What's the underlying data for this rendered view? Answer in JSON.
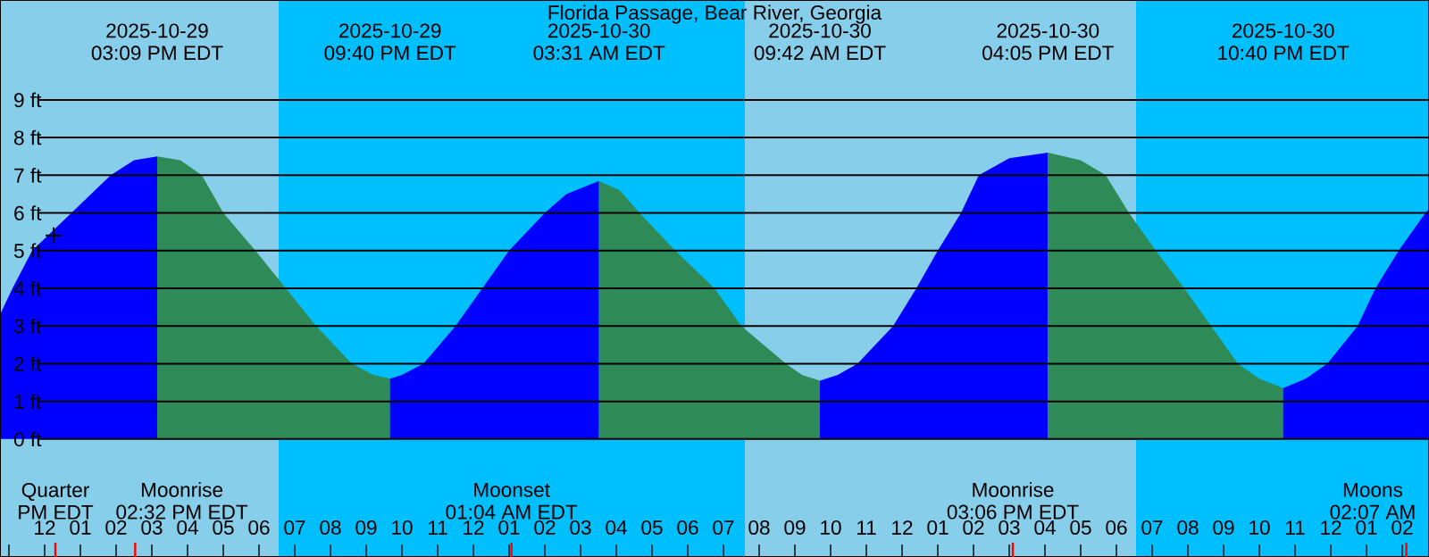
{
  "chart_data": {
    "type": "area",
    "title": "Florida Passage, Bear River, Georgia",
    "xlim": [
      "2025-10-29T10:45",
      "2025-10-31T02:45"
    ],
    "ylim": [
      -3.13,
      11.65
    ],
    "xticks": [
      {
        "value": "2025-10-29T11:00",
        "label": null
      },
      {
        "value": "2025-10-29T12:00",
        "label": "12"
      },
      {
        "value": "2025-10-29T13:00",
        "label": "01"
      },
      {
        "value": "2025-10-29T14:00",
        "label": "02"
      },
      {
        "value": "2025-10-29T15:00",
        "label": "03"
      },
      {
        "value": "2025-10-29T16:00",
        "label": "04"
      },
      {
        "value": "2025-10-29T17:00",
        "label": "05"
      },
      {
        "value": "2025-10-29T18:00",
        "label": "06"
      },
      {
        "value": "2025-10-29T19:00",
        "label": "07"
      },
      {
        "value": "2025-10-29T20:00",
        "label": "08"
      },
      {
        "value": "2025-10-29T21:00",
        "label": "09"
      },
      {
        "value": "2025-10-29T22:00",
        "label": "10"
      },
      {
        "value": "2025-10-29T23:00",
        "label": "11"
      },
      {
        "value": "2025-10-30T00:00",
        "label": "12"
      },
      {
        "value": "2025-10-30T01:00",
        "label": "01"
      },
      {
        "value": "2025-10-30T02:00",
        "label": "02"
      },
      {
        "value": "2025-10-30T03:00",
        "label": "03"
      },
      {
        "value": "2025-10-30T04:00",
        "label": "04"
      },
      {
        "value": "2025-10-30T05:00",
        "label": "05"
      },
      {
        "value": "2025-10-30T06:00",
        "label": "06"
      },
      {
        "value": "2025-10-30T07:00",
        "label": "07"
      },
      {
        "value": "2025-10-30T08:00",
        "label": "08"
      },
      {
        "value": "2025-10-30T09:00",
        "label": "09"
      },
      {
        "value": "2025-10-30T10:00",
        "label": "10"
      },
      {
        "value": "2025-10-30T11:00",
        "label": "11"
      },
      {
        "value": "2025-10-30T12:00",
        "label": "12"
      },
      {
        "value": "2025-10-30T13:00",
        "label": "01"
      },
      {
        "value": "2025-10-30T14:00",
        "label": "02"
      },
      {
        "value": "2025-10-30T15:00",
        "label": "03"
      },
      {
        "value": "2025-10-30T16:00",
        "label": "04"
      },
      {
        "value": "2025-10-30T17:00",
        "label": "05"
      },
      {
        "value": "2025-10-30T18:00",
        "label": "06"
      },
      {
        "value": "2025-10-30T19:00",
        "label": "07"
      },
      {
        "value": "2025-10-30T20:00",
        "label": "08"
      },
      {
        "value": "2025-10-30T21:00",
        "label": "09"
      },
      {
        "value": "2025-10-30T22:00",
        "label": "10"
      },
      {
        "value": "2025-10-30T23:00",
        "label": "11"
      },
      {
        "value": "2025-10-31T00:00",
        "label": "12"
      },
      {
        "value": "2025-10-31T01:00",
        "label": "01"
      },
      {
        "value": "2025-10-31T02:00",
        "label": "02"
      }
    ],
    "yticks": [
      {
        "value": 0,
        "label": "0 ft"
      },
      {
        "value": 1,
        "label": "1 ft"
      },
      {
        "value": 2,
        "label": "2 ft"
      },
      {
        "value": 3,
        "label": "3 ft"
      },
      {
        "value": 4,
        "label": "4 ft"
      },
      {
        "value": 5,
        "label": "5 ft"
      },
      {
        "value": 6,
        "label": "6 ft"
      },
      {
        "value": 7,
        "label": "7 ft"
      },
      {
        "value": 8,
        "label": "8 ft"
      },
      {
        "value": 9,
        "label": "9 ft"
      }
    ],
    "grid": "y",
    "bands": [
      {
        "axis": "x",
        "from": "2025-10-29T10:45",
        "to": "2025-10-29T18:33",
        "color": "#87ceeb"
      },
      {
        "axis": "x",
        "from": "2025-10-29T18:33",
        "to": "2025-10-30T07:36",
        "color": "#00bfff"
      },
      {
        "axis": "x",
        "from": "2025-10-30T07:36",
        "to": "2025-10-30T18:33",
        "color": "#87ceeb"
      },
      {
        "axis": "x",
        "from": "2025-10-30T18:33",
        "to": "2025-10-31T02:45",
        "color": "#00bfff"
      }
    ],
    "ref_lines": [
      {
        "axis": "x",
        "value": "2025-10-29T12:18",
        "label": "Quarter PM EDT",
        "color": "#ff0000"
      },
      {
        "axis": "x",
        "value": "2025-10-29T14:32",
        "label": "Moonrise 02:32 PM EDT",
        "color": "#ff0000"
      },
      {
        "axis": "x",
        "value": "2025-10-30T01:04",
        "label": "Moonset 01:04 AM EDT",
        "color": "#ff0000"
      },
      {
        "axis": "x",
        "value": "2025-10-30T15:06",
        "label": "Moonrise 03:06 PM EDT",
        "color": "#ff0000"
      },
      {
        "axis": "x",
        "value": "2025-10-31T02:07",
        "label": "Moons 02:07 AM",
        "color": "#ff0000"
      }
    ],
    "series": [
      {
        "color": "#0000ff",
        "x": [
          "2025-10-29T10:45",
          "2025-10-29T11:06",
          "2025-10-29T11:39",
          "2025-10-29T12:45",
          "2025-10-29T13:51",
          "2025-10-29T14:30",
          "2025-10-29T15:09"
        ],
        "values": [
          3.3,
          4,
          5,
          6,
          7,
          7.4,
          7.5
        ]
      },
      {
        "color": "#2e8b57",
        "x": [
          "2025-10-29T15:09",
          "2025-10-29T15:48",
          "2025-10-29T16:24",
          "2025-10-29T17:00",
          "2025-10-29T17:54",
          "2025-10-29T18:45",
          "2025-10-29T19:36",
          "2025-10-29T20:36",
          "2025-10-29T21:12",
          "2025-10-29T21:40"
        ],
        "values": [
          7.5,
          7.4,
          7,
          6,
          5,
          4,
          3,
          2,
          1.7,
          1.6
        ]
      },
      {
        "color": "#0000ff",
        "x": [
          "2025-10-29T21:40",
          "2025-10-29T22:00",
          "2025-10-29T22:36",
          "2025-10-29T23:30",
          "2025-10-30T00:15",
          "2025-10-30T01:00",
          "2025-10-30T02:00",
          "2025-10-30T02:36",
          "2025-10-30T03:31"
        ],
        "values": [
          1.6,
          1.7,
          2,
          3,
          4,
          5,
          6,
          6.5,
          6.85
        ]
      },
      {
        "color": "#2e8b57",
        "x": [
          "2025-10-30T03:31",
          "2025-10-30T04:06",
          "2025-10-30T04:39",
          "2025-10-30T05:39",
          "2025-10-30T06:45",
          "2025-10-30T07:30",
          "2025-10-30T08:45",
          "2025-10-30T09:12",
          "2025-10-30T09:42"
        ],
        "values": [
          6.85,
          6.6,
          6,
          5,
          4,
          3,
          2,
          1.7,
          1.55
        ]
      },
      {
        "color": "#0000ff",
        "x": [
          "2025-10-30T09:42",
          "2025-10-30T10:12",
          "2025-10-30T10:45",
          "2025-10-30T11:45",
          "2025-10-30T12:24",
          "2025-10-30T13:00",
          "2025-10-30T13:39",
          "2025-10-30T14:09",
          "2025-10-30T15:00",
          "2025-10-30T16:05"
        ],
        "values": [
          1.55,
          1.7,
          2,
          3,
          4,
          5,
          6,
          7,
          7.45,
          7.6
        ]
      },
      {
        "color": "#2e8b57",
        "x": [
          "2025-10-30T16:05",
          "2025-10-30T17:00",
          "2025-10-30T17:42",
          "2025-10-30T18:21",
          "2025-10-30T19:06",
          "2025-10-30T19:54",
          "2025-10-30T20:39",
          "2025-10-30T21:24",
          "2025-10-30T22:00",
          "2025-10-30T22:40"
        ],
        "values": [
          7.6,
          7.4,
          7,
          6,
          5,
          4,
          3,
          2,
          1.6,
          1.35
        ]
      },
      {
        "color": "#0000ff",
        "x": [
          "2025-10-30T22:40",
          "2025-10-30T23:18",
          "2025-10-30T23:54",
          "2025-10-31T00:45",
          "2025-10-31T01:15",
          "2025-10-31T01:54",
          "2025-10-31T02:39",
          "2025-10-31T02:45"
        ],
        "values": [
          1.35,
          1.6,
          2,
          3,
          4,
          5,
          6,
          6.1
        ]
      },
      {
        "type": "scatter",
        "color": "#000000",
        "marker": "cross",
        "x": [
          "2025-10-29T12:15"
        ],
        "values": [
          5.4
        ]
      }
    ],
    "annotations": [
      "2025-10-29 03:09 PM EDT",
      "2025-10-29 09:40 PM EDT",
      "2025-10-30 03:31 AM EDT",
      "2025-10-30 09:42 AM EDT",
      "2025-10-30 04:05 PM EDT",
      "2025-10-30 10:40 PM EDT"
    ]
  }
}
